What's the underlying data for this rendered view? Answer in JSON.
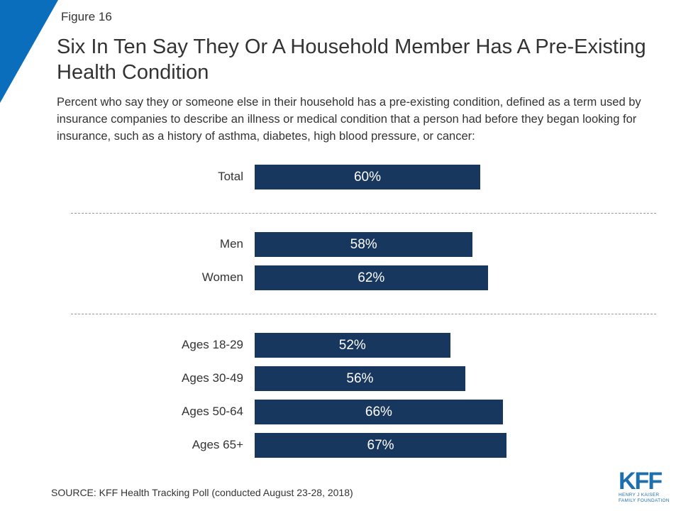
{
  "header": {
    "figure_label": "Figure 16",
    "title": "Six In Ten Say They Or A Household Member Has A Pre-Existing Health Condition",
    "subtitle": "Percent who say they or someone else in their household has a pre-existing condition, defined as a term used by insurance companies to describe an illness or medical condition that a person had before they began looking for insurance, such as a history of asthma, diabetes, high blood pressure, or cancer:"
  },
  "chart_data": {
    "type": "bar",
    "orientation": "horizontal",
    "categories": [
      "Total",
      "Men",
      "Women",
      "Ages 18-29",
      "Ages 30-49",
      "Ages 50-64",
      "Ages 65+"
    ],
    "values": [
      60,
      58,
      62,
      52,
      56,
      66,
      67
    ],
    "data_labels": [
      "60%",
      "58%",
      "62%",
      "52%",
      "56%",
      "66%",
      "67%"
    ],
    "groups": [
      [
        "Total"
      ],
      [
        "Men",
        "Women"
      ],
      [
        "Ages 18-29",
        "Ages 30-49",
        "Ages 50-64",
        "Ages 65+"
      ]
    ],
    "xlim": [
      0,
      100
    ],
    "bar_color": "#17375e",
    "label_color": "#ffffff",
    "grid": false,
    "legend": "none"
  },
  "footer": {
    "source": "SOURCE: KFF Health Tracking Poll (conducted August 23-28, 2018)"
  },
  "logo": {
    "mark": "KFF",
    "line1": "HENRY J KAISER",
    "line2": "FAMILY FOUNDATION",
    "color": "#1d6fae"
  },
  "accent_color": "#0a6ebd"
}
